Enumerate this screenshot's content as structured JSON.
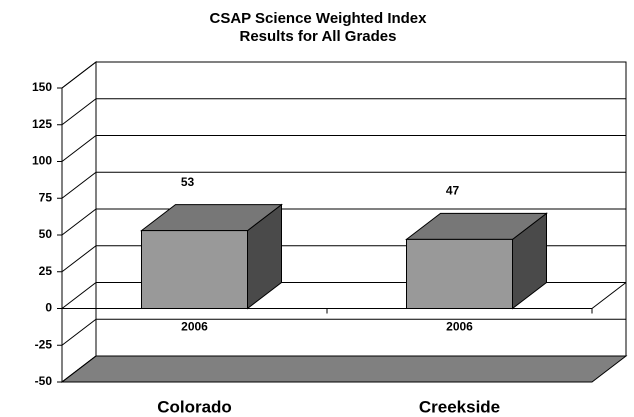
{
  "chart_data": {
    "type": "bar3d",
    "title": "CSAP Science Weighted Index",
    "subtitle": "Results for All Grades",
    "categories": [
      "Colorado",
      "Creekside"
    ],
    "series": [
      {
        "name": "2006",
        "color": "#999999",
        "values": [
          53,
          47
        ]
      }
    ],
    "ylim": [
      -50,
      150
    ],
    "yticks": [
      -50,
      -25,
      0,
      25,
      50,
      75,
      100,
      125,
      150
    ],
    "grid": true
  }
}
